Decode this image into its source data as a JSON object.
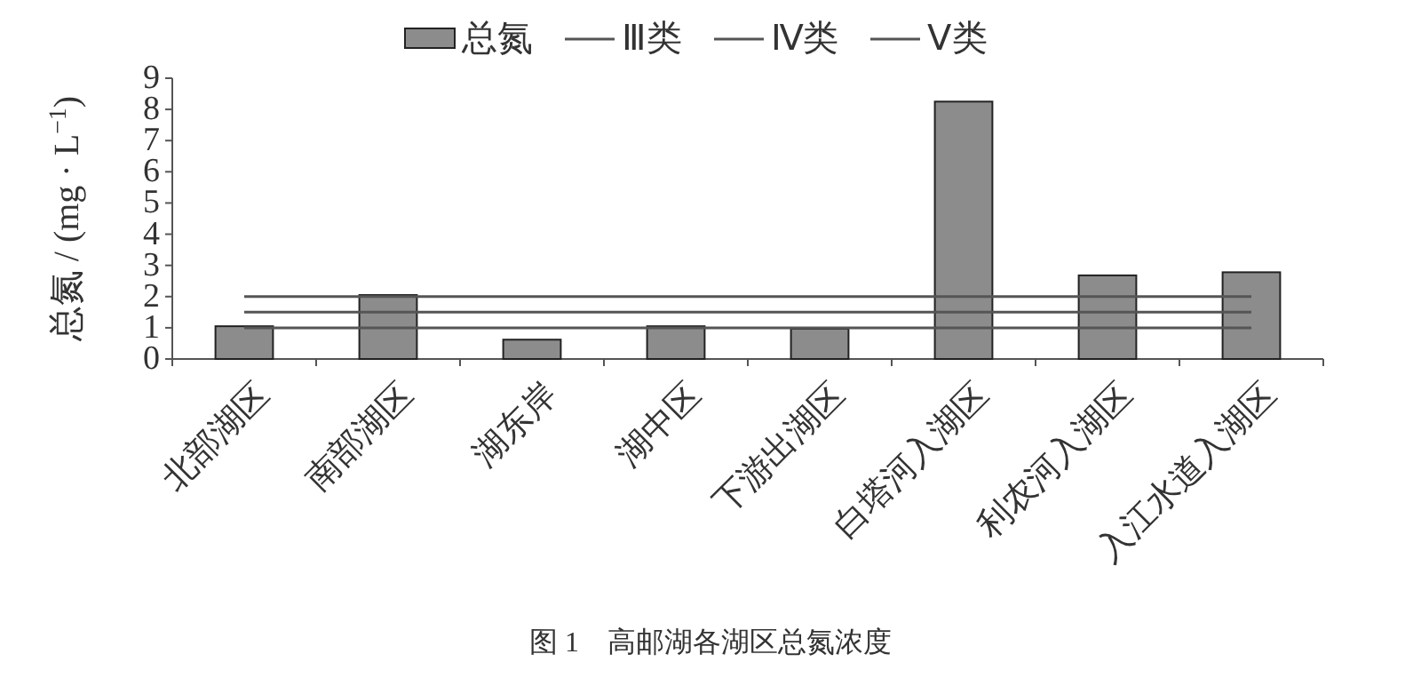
{
  "chart_data": {
    "type": "bar",
    "ylabel": "总氮 / (mg · L$^{−1}$)",
    "categories": [
      "北部湖区",
      "南部湖区",
      "湖东岸",
      "湖中区",
      "下游出湖区",
      "白塔河入湖区",
      "利农河入湖区",
      "入江水道入湖区"
    ],
    "series": [
      {
        "name": "总氮",
        "color": "#8c8c8c",
        "values": [
          1.05,
          2.05,
          0.62,
          1.05,
          0.97,
          8.25,
          2.68,
          2.78
        ]
      }
    ],
    "ylim": [
      0,
      9
    ],
    "yticks": [
      0,
      1,
      2,
      3,
      4,
      5,
      6,
      7,
      8,
      9
    ],
    "grid": false,
    "legend": "top",
    "ref_lines": [
      {
        "axis": "y",
        "value": 1,
        "label": "Ⅲ类",
        "color": "#555555"
      },
      {
        "axis": "y",
        "value": 1.5,
        "label": "Ⅳ类",
        "color": "#555555"
      },
      {
        "axis": "y",
        "value": 2,
        "label": "Ⅴ类",
        "color": "#555555"
      }
    ],
    "annotations": [
      "图 1　高邮湖各湖区总氮浓度"
    ]
  }
}
